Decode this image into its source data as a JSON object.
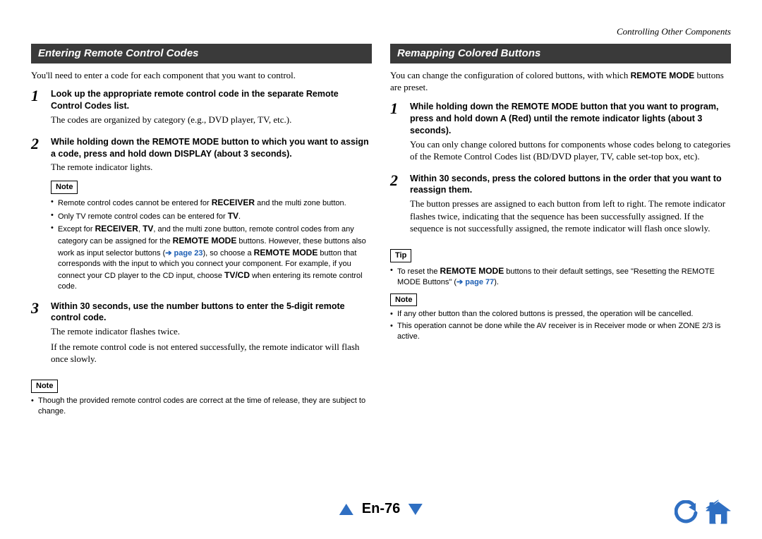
{
  "header": {
    "chapter": "Controlling Other Components"
  },
  "left": {
    "title": "Entering Remote Control Codes",
    "intro": "You'll need to enter a code for each component that you want to control.",
    "step1": {
      "title": "Look up the appropriate remote control code in the separate Remote Control Codes list.",
      "desc": "The codes are organized by category (e.g., DVD player, TV, etc.)."
    },
    "step2": {
      "title_html": "While holding down the REMOTE MODE button to which you want to assign a code, press and hold down DISPLAY (about 3 seconds).",
      "desc": "The remote indicator lights.",
      "note_label": "Note",
      "note1_html": "Remote control codes cannot be entered for <b class='sans'>RECEIVER</b> and the multi zone button.",
      "note2_html": "Only TV remote control codes can be entered for <b class='sans'>TV</b>.",
      "note3_html": "Except for <b class='sans'>RECEIVER</b>, <b class='sans'>TV</b>, and the multi zone button, remote control codes from any category can be assigned for the <b class='sans'>REMOTE MODE</b> buttons. However, these buttons also work as input selector buttons (<span class='arrow'>➔</span> <span class='pg-link'>page 23</span>), so choose a <b class='sans'>REMOTE MODE</b> button that corresponds with the input to which you connect your component. For example, if you connect your CD player to the CD input, choose <b class='sans'>TV/CD</b> when entering its remote control code."
    },
    "step3": {
      "title": "Within 30 seconds, use the number buttons to enter the 5-digit remote control code.",
      "desc1": "The remote indicator flashes twice.",
      "desc2": "If the remote control code is not entered successfully, the remote indicator will flash once slowly."
    },
    "bottom_note_label": "Note",
    "bottom_note": "Though the provided remote control codes are correct at the time of release, they are subject to change."
  },
  "right": {
    "title": "Remapping Colored Buttons",
    "intro_html": "You can change the configuration of colored buttons, with which <b class='sans'>REMOTE MODE</b> buttons are preset.",
    "step1": {
      "title_html": "While holding down the REMOTE MODE button that you want to program, press and hold down A (Red) until the remote indicator lights (about 3 seconds).",
      "desc": "You can only change colored buttons for components whose codes belong to categories of the Remote Control Codes list (BD/DVD player, TV, cable set-top box, etc)."
    },
    "step2": {
      "title": "Within 30 seconds, press the colored buttons in the order that you want to reassign them.",
      "desc": "The button presses are assigned to each button from left to right. The remote indicator flashes twice, indicating that the sequence has been successfully assigned. If the sequence is not successfully assigned, the remote indicator will flash once slowly."
    },
    "tip_label": "Tip",
    "tip_html": "To reset the <b class='sans'>REMOTE MODE</b> buttons to their default settings, see \"Resetting the REMOTE MODE Buttons\" (<span class='arrow'>➔</span> <span class='pg-link'>page 77</span>).",
    "note_label": "Note",
    "note1": "If any other button than the colored buttons is pressed, the operation will be cancelled.",
    "note2": "This operation cannot be done while the AV receiver is in Receiver mode or when ZONE 2/3 is active."
  },
  "footer": {
    "page": "En-76"
  },
  "colors": {
    "banner_bg": "#3a3a3a",
    "link": "#1e5fb4",
    "nav_blue": "#2f6fc2"
  }
}
